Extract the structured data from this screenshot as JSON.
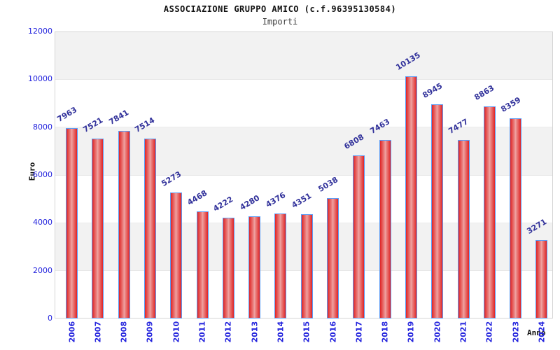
{
  "header": {
    "title": "ASSOCIAZIONE GRUPPO AMICO (c.f.96395130584)",
    "subtitle": "Importi"
  },
  "chart_data": {
    "type": "bar",
    "title": "ASSOCIAZIONE GRUPPO AMICO (c.f.96395130584)",
    "subtitle": "Importi",
    "xlabel": "Anno",
    "ylabel": "Euro",
    "categories": [
      "2006",
      "2007",
      "2008",
      "2009",
      "2010",
      "2011",
      "2012",
      "2013",
      "2014",
      "2015",
      "2016",
      "2017",
      "2018",
      "2019",
      "2020",
      "2021",
      "2022",
      "2023",
      "2024"
    ],
    "values": [
      7963,
      7521,
      7841,
      7514,
      5273,
      4468,
      4222,
      4280,
      4376,
      4351,
      5038,
      6808,
      7463,
      10135,
      8945,
      7477,
      8863,
      8359,
      3271
    ],
    "ylim": [
      0,
      12000
    ],
    "yticks": [
      0,
      2000,
      4000,
      6000,
      8000,
      10000,
      12000
    ],
    "grid": "horizontal-bands",
    "legend": "none",
    "colors": {
      "bar_fill_dark": "#df2426",
      "bar_fill_light": "#f0a6a5",
      "bar_border": "#5b9cf5",
      "value_label": "#32329b",
      "tick_label": "#2222dd",
      "band_gray": "#f2f2f2",
      "band_white": "#ffffff",
      "axis_title": "#111111"
    }
  }
}
